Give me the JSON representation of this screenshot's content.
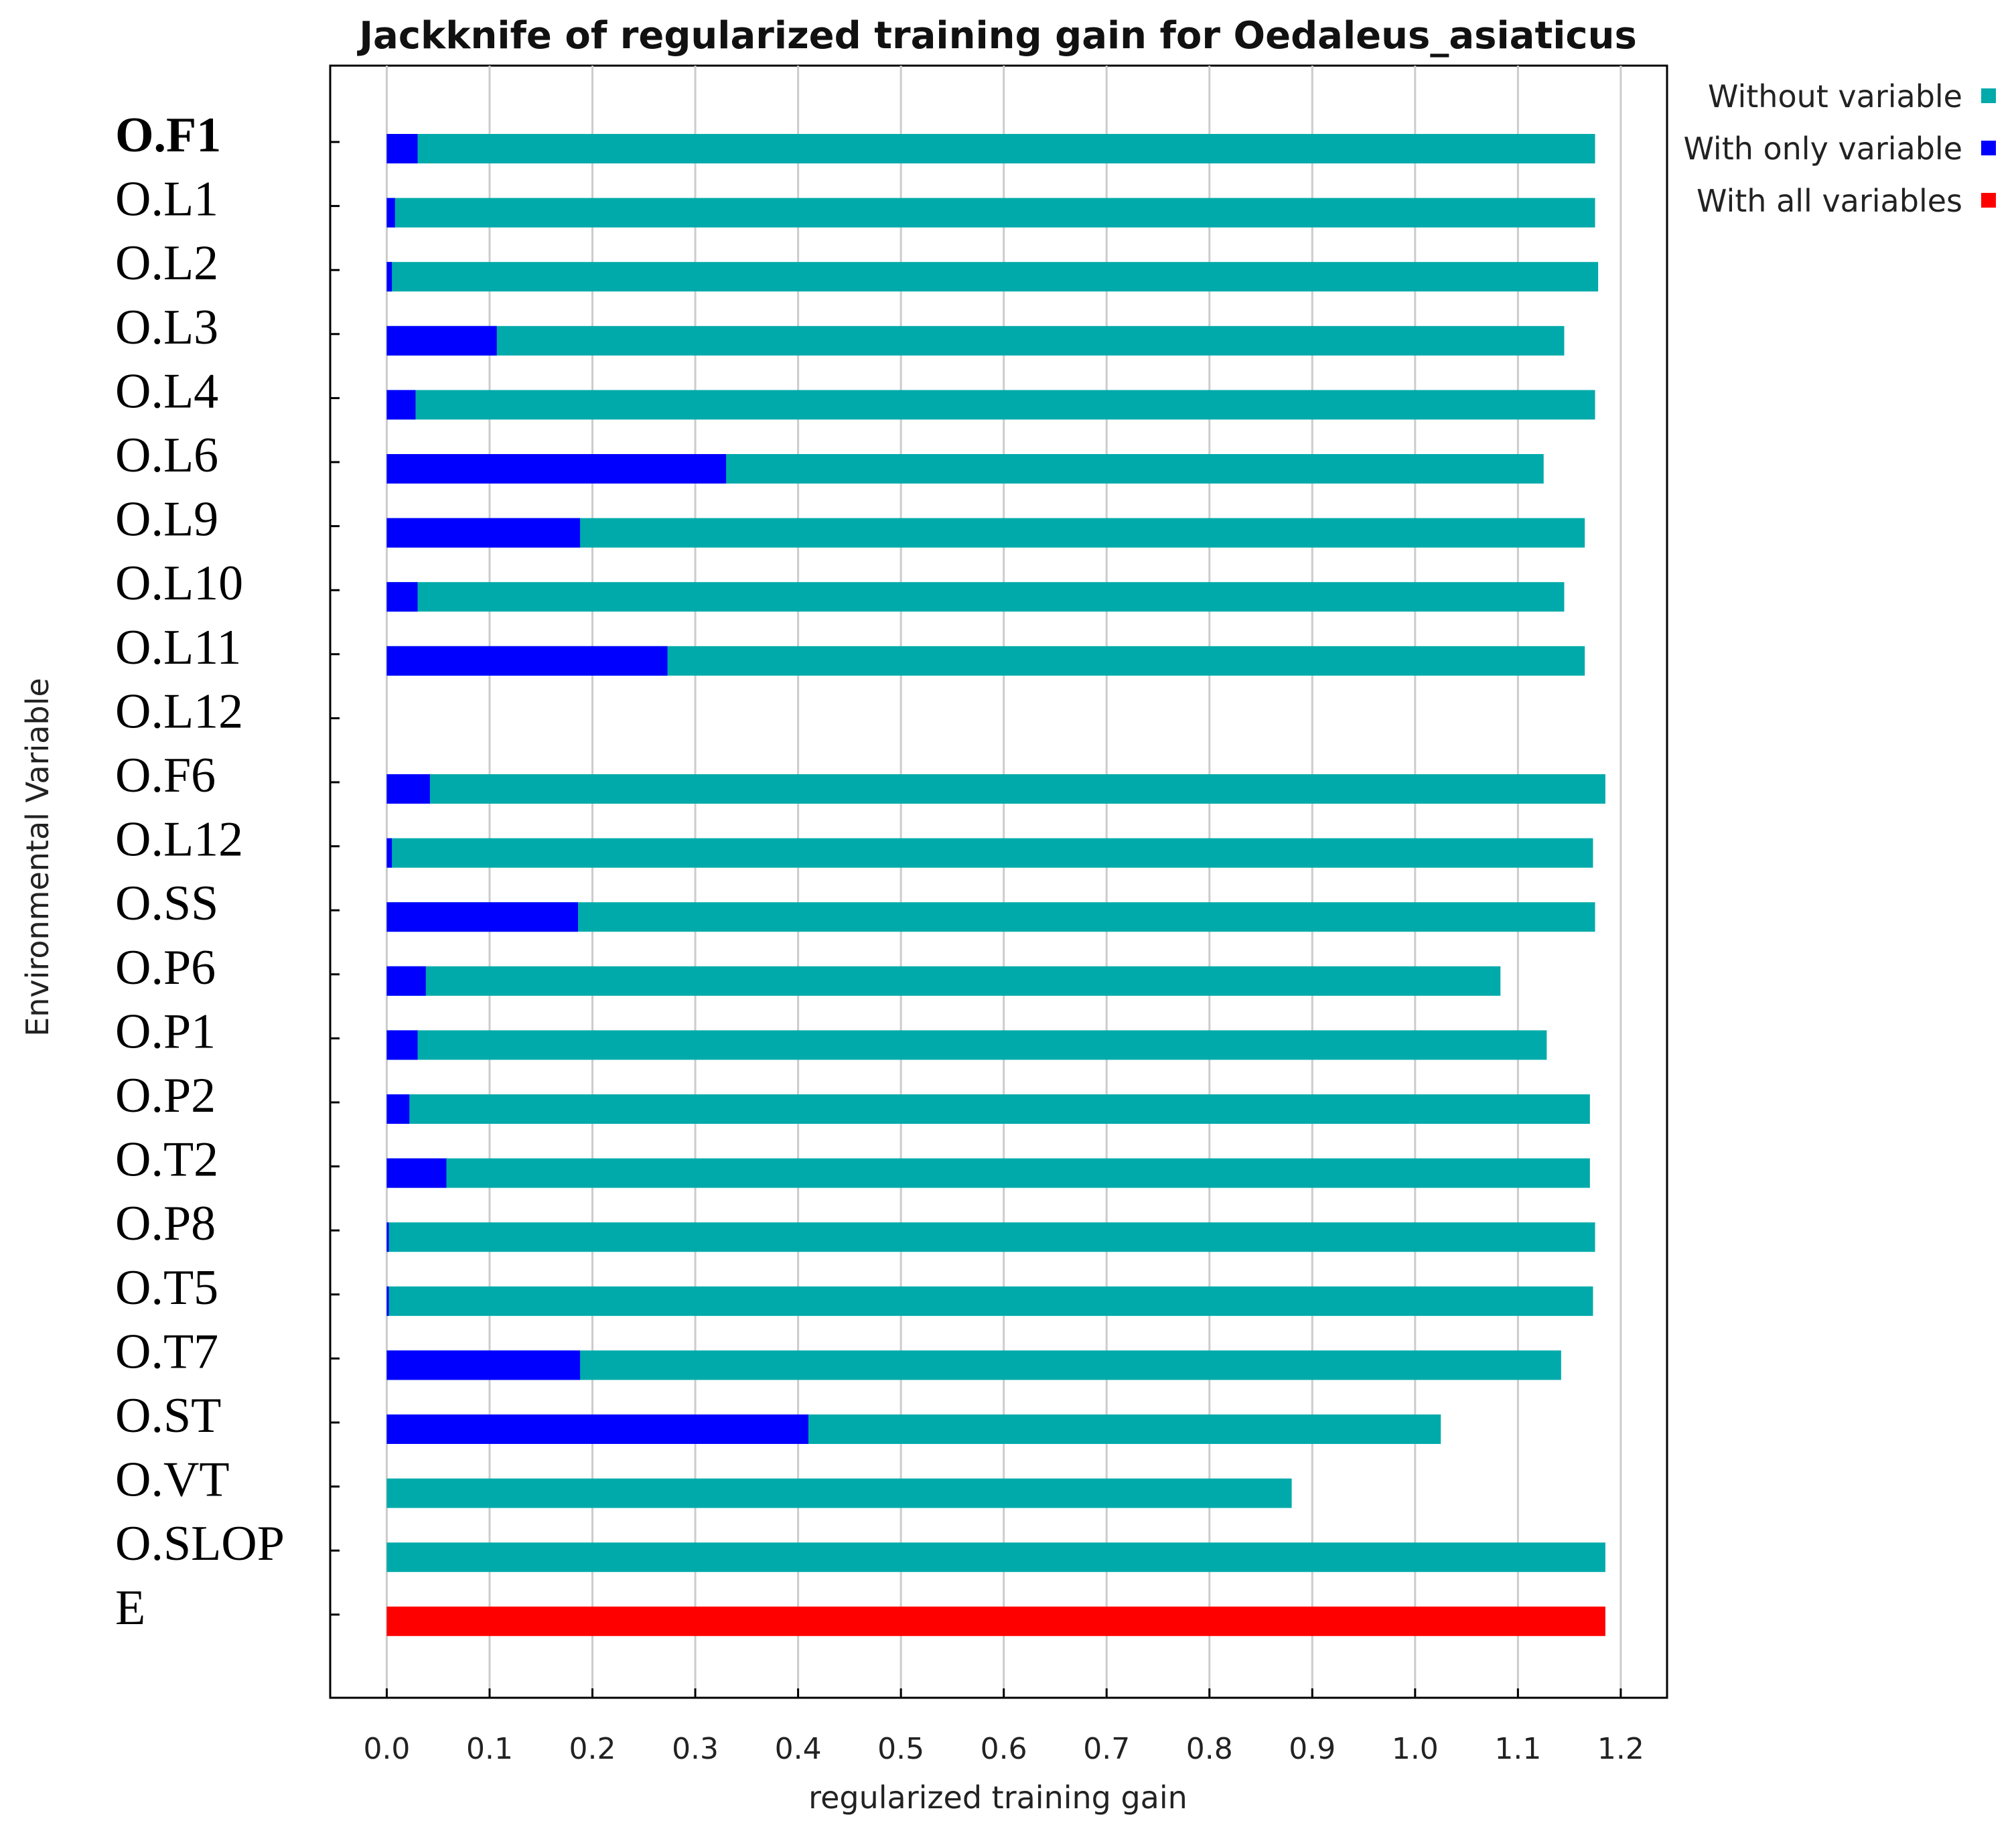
{
  "chart_data": {
    "type": "bar",
    "orientation": "horizontal",
    "title": "Jackknife of regularized training gain for Oedaleus_asiaticus",
    "xlabel": "regularized training gain",
    "ylabel": "Environmental Variable",
    "xlim": [
      -0.055,
      1.245
    ],
    "xticks": [
      0.0,
      0.1,
      0.2,
      0.3,
      0.4,
      0.5,
      0.6,
      0.7,
      0.8,
      0.9,
      1.0,
      1.1,
      1.2
    ],
    "xtick_labels": [
      "0.0",
      "0.1",
      "0.2",
      "0.3",
      "0.4",
      "0.5",
      "0.6",
      "0.7",
      "0.8",
      "0.9",
      "1.0",
      "1.1",
      "1.2"
    ],
    "grid": true,
    "legend_position": "top-right (outside plot)",
    "categories": [
      "O.F1",
      "O.L1",
      "O.L2",
      "O.L3",
      "O.L4",
      "O.L6",
      "O.L9",
      "O.L10",
      "O.L11",
      "O.L12",
      "O.F6",
      "O.L12",
      "O.SS",
      "O.P6",
      "O.P1",
      "O.P2",
      "O.T2",
      "O.P8",
      "O.T5",
      "O.T7",
      "O.ST",
      "O.VT",
      "O.SLOP",
      "E"
    ],
    "bold_categories": [
      "O.F1"
    ],
    "series": [
      {
        "name": "Without variable",
        "color": "#00aaaa",
        "values": [
          1.175,
          1.175,
          1.178,
          1.145,
          1.175,
          1.125,
          1.165,
          1.145,
          1.165,
          null,
          1.185,
          1.173,
          1.175,
          1.083,
          1.128,
          1.17,
          1.17,
          1.175,
          1.173,
          1.142,
          1.025,
          0.88,
          1.185,
          null
        ]
      },
      {
        "name": "With only variable",
        "color": "#0000ff",
        "values": [
          0.03,
          0.008,
          0.005,
          0.107,
          0.028,
          0.33,
          0.188,
          0.03,
          0.273,
          null,
          0.042,
          0.005,
          0.186,
          0.038,
          0.03,
          0.022,
          0.058,
          0.002,
          0.002,
          0.188,
          0.41,
          null,
          null,
          null
        ]
      },
      {
        "name": "With all variables",
        "color": "#ff0000",
        "values": [
          null,
          null,
          null,
          null,
          null,
          null,
          null,
          null,
          null,
          null,
          null,
          null,
          null,
          null,
          null,
          null,
          null,
          null,
          null,
          null,
          null,
          null,
          null,
          1.185
        ]
      }
    ]
  }
}
